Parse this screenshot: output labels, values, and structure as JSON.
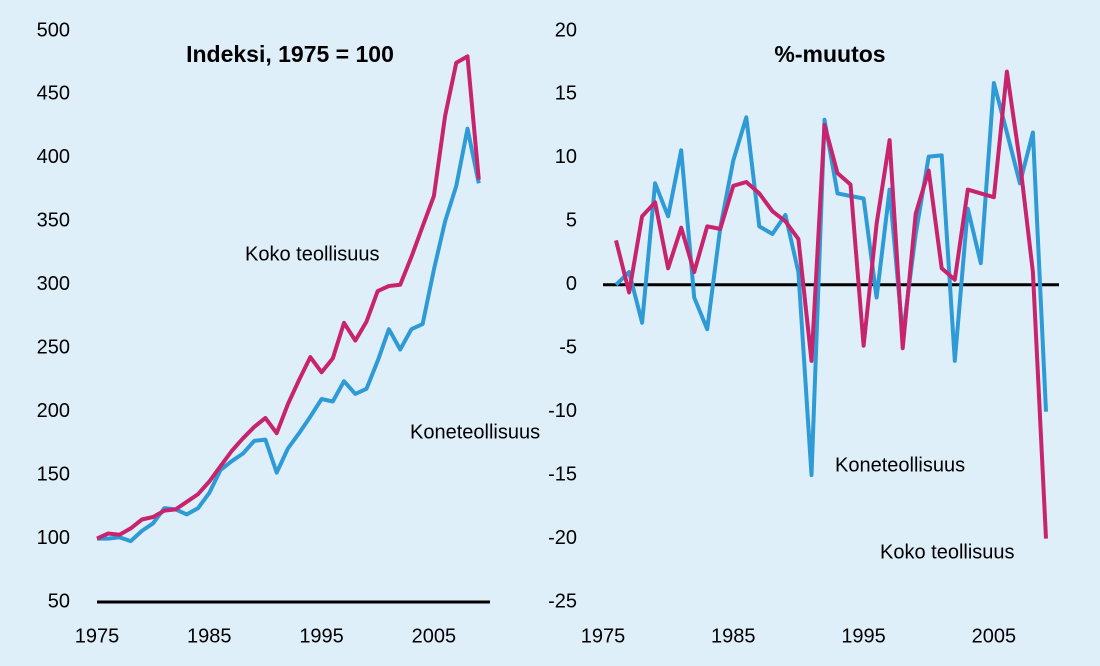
{
  "chart_data": [
    {
      "type": "line",
      "title": "Indeksi, 1975 = 100",
      "x": [
        1975,
        1976,
        1977,
        1978,
        1979,
        1980,
        1981,
        1982,
        1983,
        1984,
        1985,
        1986,
        1987,
        1988,
        1989,
        1990,
        1991,
        1992,
        1993,
        1994,
        1995,
        1996,
        1997,
        1998,
        1999,
        2000,
        2001,
        2002,
        2003,
        2004,
        2005,
        2006,
        2007,
        2008,
        2009
      ],
      "series": [
        {
          "name": "Koneteollisuus",
          "color": "#2e9bd6",
          "values": [
            100,
            100,
            101,
            98,
            106,
            112,
            124,
            123,
            119,
            124,
            136,
            154,
            161,
            167,
            177,
            178,
            152,
            171,
            183,
            196,
            210,
            208,
            224,
            214,
            218,
            240,
            265,
            249,
            265,
            269,
            312,
            350,
            378,
            423,
            380
          ]
        },
        {
          "name": "Koko teollisuus",
          "color": "#c8246e",
          "values": [
            100,
            104,
            103,
            108,
            115,
            117,
            122,
            123,
            129,
            135,
            145,
            157,
            169,
            179,
            188,
            195,
            183,
            206,
            225,
            243,
            231,
            242,
            270,
            256,
            271,
            295,
            299,
            300,
            322,
            346,
            370,
            433,
            475,
            480,
            383
          ]
        }
      ],
      "xlim": [
        1975,
        2010
      ],
      "xticks": [
        1975,
        1985,
        1995,
        2005
      ],
      "ylim": [
        50,
        500
      ],
      "yticks": [
        50,
        100,
        150,
        200,
        250,
        300,
        350,
        400,
        450,
        500
      ]
    },
    {
      "type": "line",
      "title": "%-muutos",
      "x": [
        1976,
        1977,
        1978,
        1979,
        1980,
        1981,
        1982,
        1983,
        1984,
        1985,
        1986,
        1987,
        1988,
        1989,
        1990,
        1991,
        1992,
        1993,
        1994,
        1995,
        1996,
        1997,
        1998,
        1999,
        2000,
        2001,
        2002,
        2003,
        2004,
        2005,
        2006,
        2007,
        2008,
        2009
      ],
      "series": [
        {
          "name": "Koneteollisuus",
          "color": "#2e9bd6",
          "values": [
            0,
            1,
            -3,
            8,
            5.4,
            10.6,
            -1,
            -3.5,
            4.5,
            9.8,
            13.2,
            4.6,
            4,
            5.5,
            1,
            -15,
            13,
            7.2,
            7,
            6.8,
            -1,
            7.5,
            -4,
            4,
            10.1,
            10.2,
            -6,
            6,
            1.7,
            15.9,
            12,
            8,
            12,
            -10
          ]
        },
        {
          "name": "Koko teollisuus",
          "color": "#c8246e",
          "values": [
            3.5,
            -0.6,
            5.4,
            6.5,
            1.3,
            4.5,
            1,
            4.6,
            4.4,
            7.8,
            8.1,
            7.2,
            5.8,
            5,
            3.6,
            -6,
            12.6,
            8.8,
            7.9,
            -4.8,
            4.8,
            11.4,
            -5,
            5.6,
            9,
            1.3,
            0.4,
            7.5,
            7.2,
            6.9,
            16.8,
            9.7,
            1,
            -20
          ]
        }
      ],
      "xlim": [
        1975,
        2010
      ],
      "xticks": [
        1975,
        1985,
        1995,
        2005
      ],
      "ylim": [
        -25,
        20
      ],
      "yticks": [
        -25,
        -20,
        -15,
        -10,
        -5,
        0,
        5,
        10,
        15,
        20
      ]
    }
  ]
}
